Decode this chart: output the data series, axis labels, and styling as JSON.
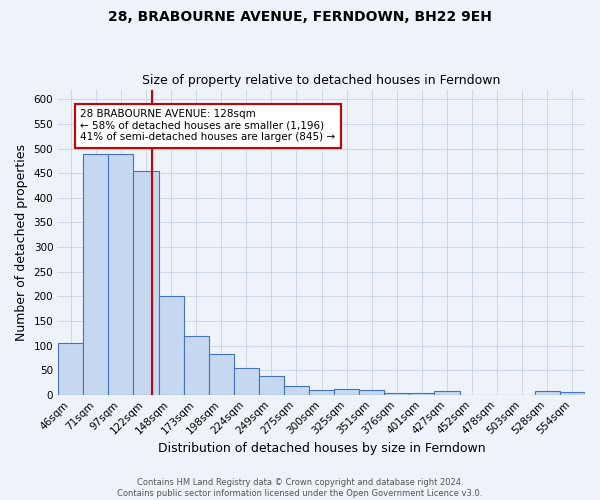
{
  "title1": "28, BRABOURNE AVENUE, FERNDOWN, BH22 9EH",
  "title2": "Size of property relative to detached houses in Ferndown",
  "xlabel": "Distribution of detached houses by size in Ferndown",
  "ylabel": "Number of detached properties",
  "categories": [
    "46sqm",
    "71sqm",
    "97sqm",
    "122sqm",
    "148sqm",
    "173sqm",
    "198sqm",
    "224sqm",
    "249sqm",
    "275sqm",
    "300sqm",
    "325sqm",
    "351sqm",
    "376sqm",
    "401sqm",
    "427sqm",
    "452sqm",
    "478sqm",
    "503sqm",
    "528sqm",
    "554sqm"
  ],
  "values": [
    105,
    490,
    490,
    455,
    200,
    120,
    83,
    55,
    38,
    17,
    10,
    12,
    10,
    3,
    3,
    8,
    0,
    0,
    0,
    7,
    5
  ],
  "bar_color": "#c5d8f0",
  "bar_edge_color": "#4472c4",
  "red_line_index": 3,
  "annotation_line1": "28 BRABOURNE AVENUE: 128sqm",
  "annotation_line2": "← 58% of detached houses are smaller (1,196)",
  "annotation_line3": "41% of semi-detached houses are larger (845) →",
  "annotation_box_color": "#ffffff",
  "annotation_border_color": "#cc0000",
  "ylim_max": 620,
  "footnote1": "Contains HM Land Registry data © Crown copyright and database right 2024.",
  "footnote2": "Contains public sector information licensed under the Open Government Licence v3.0.",
  "bg_color": "#eef2f9",
  "title_fontsize": 10,
  "subtitle_fontsize": 9,
  "axis_label_fontsize": 9,
  "tick_fontsize": 7.5,
  "annotation_fontsize": 7.5
}
